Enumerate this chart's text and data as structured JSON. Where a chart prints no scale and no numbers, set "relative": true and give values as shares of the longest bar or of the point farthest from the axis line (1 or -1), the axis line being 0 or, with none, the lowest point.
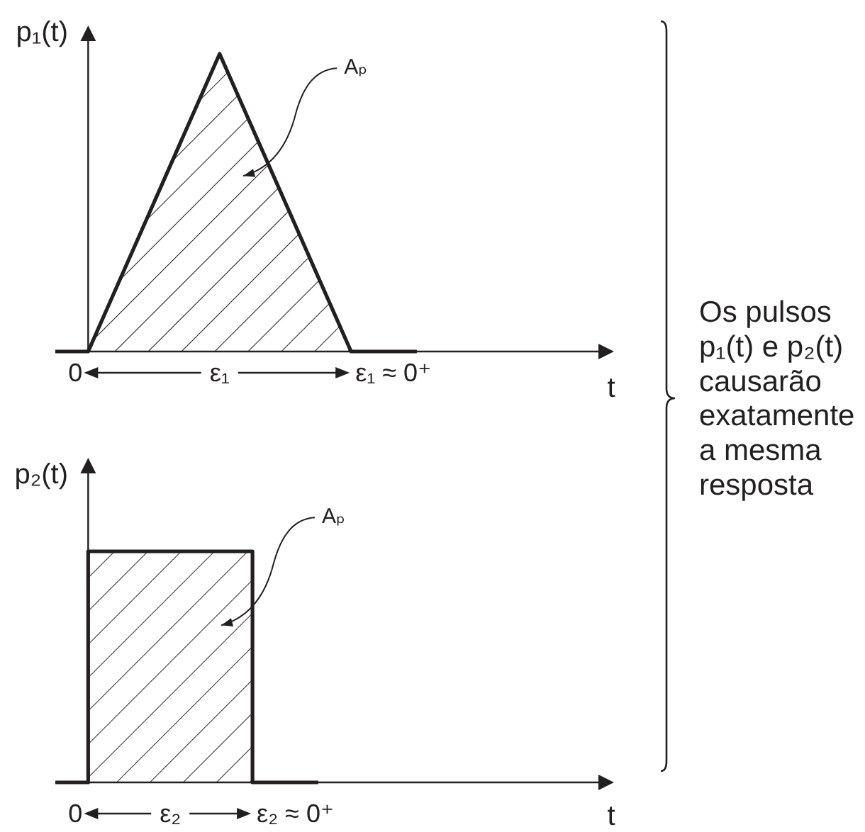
{
  "chart_data": [
    {
      "type": "area",
      "ylabel": "p₁(t)",
      "xlabel": "t",
      "categories": [
        null,
        null,
        null,
        null,
        null,
        null,
        null,
        null,
        null,
        null,
        null,
        null,
        null,
        null,
        null,
        null,
        null,
        null
      ],
      "series": [
        {
          "color": "#231f20",
          "values": [
            0,
            0,
            0.25,
            0.5,
            0.75,
            1,
            0.75,
            0.5,
            0.25,
            0,
            0,
            0,
            null,
            null,
            null,
            null,
            null,
            null
          ]
        }
      ],
      "relative": true,
      "annotations": [
        "0",
        "ε₁",
        "ε₁ ≈ 0⁺",
        "Aₚ"
      ]
    },
    {
      "type": "step",
      "ylabel": "p₂(t)",
      "xlabel": "t",
      "categories": [
        null,
        null,
        null,
        null,
        null,
        null,
        null,
        null,
        null,
        null,
        null,
        null,
        null,
        null,
        null,
        null,
        null,
        null
      ],
      "series": [
        {
          "color": "#231f20",
          "values": [
            0,
            1,
            1,
            1,
            1,
            1,
            0,
            0,
            0,
            null,
            null,
            null,
            null,
            null,
            null,
            null,
            null,
            null
          ]
        }
      ],
      "relative": true,
      "annotations": [
        "0",
        "ε₂",
        "ε₂ ≈ 0⁺",
        "Aₚ"
      ]
    },
    {
      "type": "other",
      "annotations": [
        "Os pulsos p₁(t) e p₂(t) causarão exatamente a mesma resposta"
      ]
    }
  ]
}
